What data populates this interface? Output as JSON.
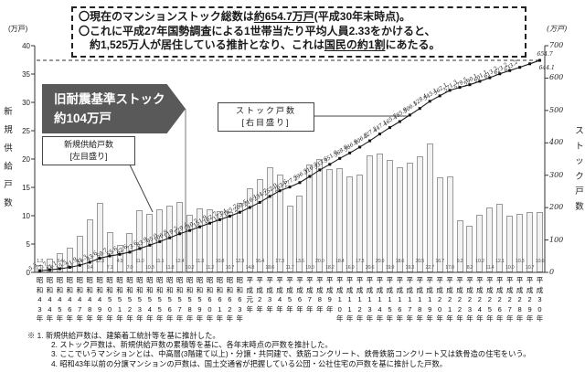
{
  "header": {
    "line1_pre": "〇現在のマンションストック総数は",
    "line1_underline": "約654.7万戸",
    "line1_post": "(平成30年末時点)。",
    "line2": "〇これに平成27年国勢調査による1世帯当たり平均人員2.33をかけると、",
    "line3_pre": "約1,525万人が居住している推計となり、これは",
    "line3_underline": "国民の約1割",
    "line3_post": "にあたる。"
  },
  "annotations": {
    "banner_line1": "旧耐震基準ストック",
    "banner_line2": "約104万戸",
    "supply_box_line1": "新規供給戸数",
    "supply_box_line2": "[左目盛り]",
    "stock_box_line1": "ストック戸数",
    "stock_box_line2": "[右目盛り]"
  },
  "chart_data": {
    "type": "bar+line",
    "categories": [
      "昭和43年",
      "昭和44年",
      "昭和45年",
      "昭和46年",
      "昭和47年",
      "昭和48年",
      "昭和49年",
      "昭和50年",
      "昭和51年",
      "昭和52年",
      "昭和53年",
      "昭和54年",
      "昭和55年",
      "昭和56年",
      "昭和57年",
      "昭和58年",
      "昭和59年",
      "昭和60年",
      "昭和61年",
      "昭和62年",
      "昭和63年",
      "平成元年",
      "平成2年",
      "平成3年",
      "平成4年",
      "平成5年",
      "平成6年",
      "平成7年",
      "平成8年",
      "平成9年",
      "平成10年",
      "平成11年",
      "平成12年",
      "平成13年",
      "平成14年",
      "平成15年",
      "平成16年",
      "平成17年",
      "平成18年",
      "平成19年",
      "平成20年",
      "平成21年",
      "平成22年",
      "平成23年",
      "平成24年",
      "平成25年",
      "平成26年",
      "平成27年",
      "平成28年",
      "平成29年",
      "平成30年"
    ],
    "series": [
      {
        "name": "新規供給戸数",
        "type": "bar",
        "axis": "left",
        "values": [
          1.3,
          2.4,
          3.4,
          4.4,
          6.4,
          9.4,
          12.3,
          7.1,
          4.9,
          7.0,
          11.0,
          10.3,
          11.1,
          11.8,
          12.4,
          10.2,
          11.3,
          11.2,
          10.8,
          10.7,
          12.3,
          14.8,
          16.4,
          18.6,
          17.3,
          11.7,
          13.6,
          19.0,
          20.0,
          18.2,
          18.4,
          16.9,
          17.3,
          20.6,
          20.9,
          19.9,
          18.6,
          19.3,
          20.5,
          22.7,
          16.7,
          17.0,
          9.2,
          8.2,
          10.2,
          11.4,
          12.1,
          10.0,
          10.3,
          10.7,
          10.6
        ]
      },
      {
        "name": "ストック戸数",
        "type": "line",
        "axis": "right",
        "values": [
          5.3,
          7.7,
          11.1,
          15.5,
          21.9,
          31.3,
          43.6,
          50.7,
          55.6,
          62.6,
          73.6,
          83.9,
          95.0,
          106.8,
          119.2,
          129.4,
          140.7,
          151.9,
          162.7,
          173.4,
          185.7,
          200.5,
          216.1,
          234.7,
          252.0,
          263.6,
          277.3,
          296.3,
          316.3,
          333.6,
          351.9,
          368.8,
          386.9,
          406.3,
          427.2,
          447.1,
          465.7,
          485.9,
          506.1,
          528.4,
          545.1,
          562.1,
          571.3,
          579.5,
          590.1,
          601.1,
          613.2,
          623.2,
          633.2,
          644.1,
          654.7
        ]
      }
    ],
    "left_axis": {
      "label": "新規供給戸数",
      "unit": "(万戸)",
      "min": 0,
      "max": 40,
      "step": 5
    },
    "right_axis": {
      "label": "ストック戸数",
      "unit": "(万戸)",
      "min": 0,
      "max": 700,
      "step": 100
    },
    "reference_line": {
      "axis": "right",
      "value": 654.7,
      "style": "dashed"
    },
    "grid": false,
    "legend": "callout-boxes"
  },
  "notes": [
    "※ 1. 新規供給戸数は、建築着工統計等を基に推計した。",
    "2. ストック戸数は、新規供給戸数の累積等を基に、各年末時点の戸数を推計した。",
    "3. ここでいうマンションとは、中高層(3階建て以上)・分譲・共同建で、鉄筋コンクリート、鉄骨鉄筋コンクリート又は鉄骨造の住宅をいう。",
    "4. 昭和43年以前の分譲マンションの戸数は、国土交通省が把握している公団・公社住宅の戸数を基に推計した戸数。"
  ],
  "colors": {
    "banner_bg": "#595959",
    "bar_fill": "#f2f2f2",
    "bar_border": "#999999",
    "line": "#1a1a1a"
  }
}
